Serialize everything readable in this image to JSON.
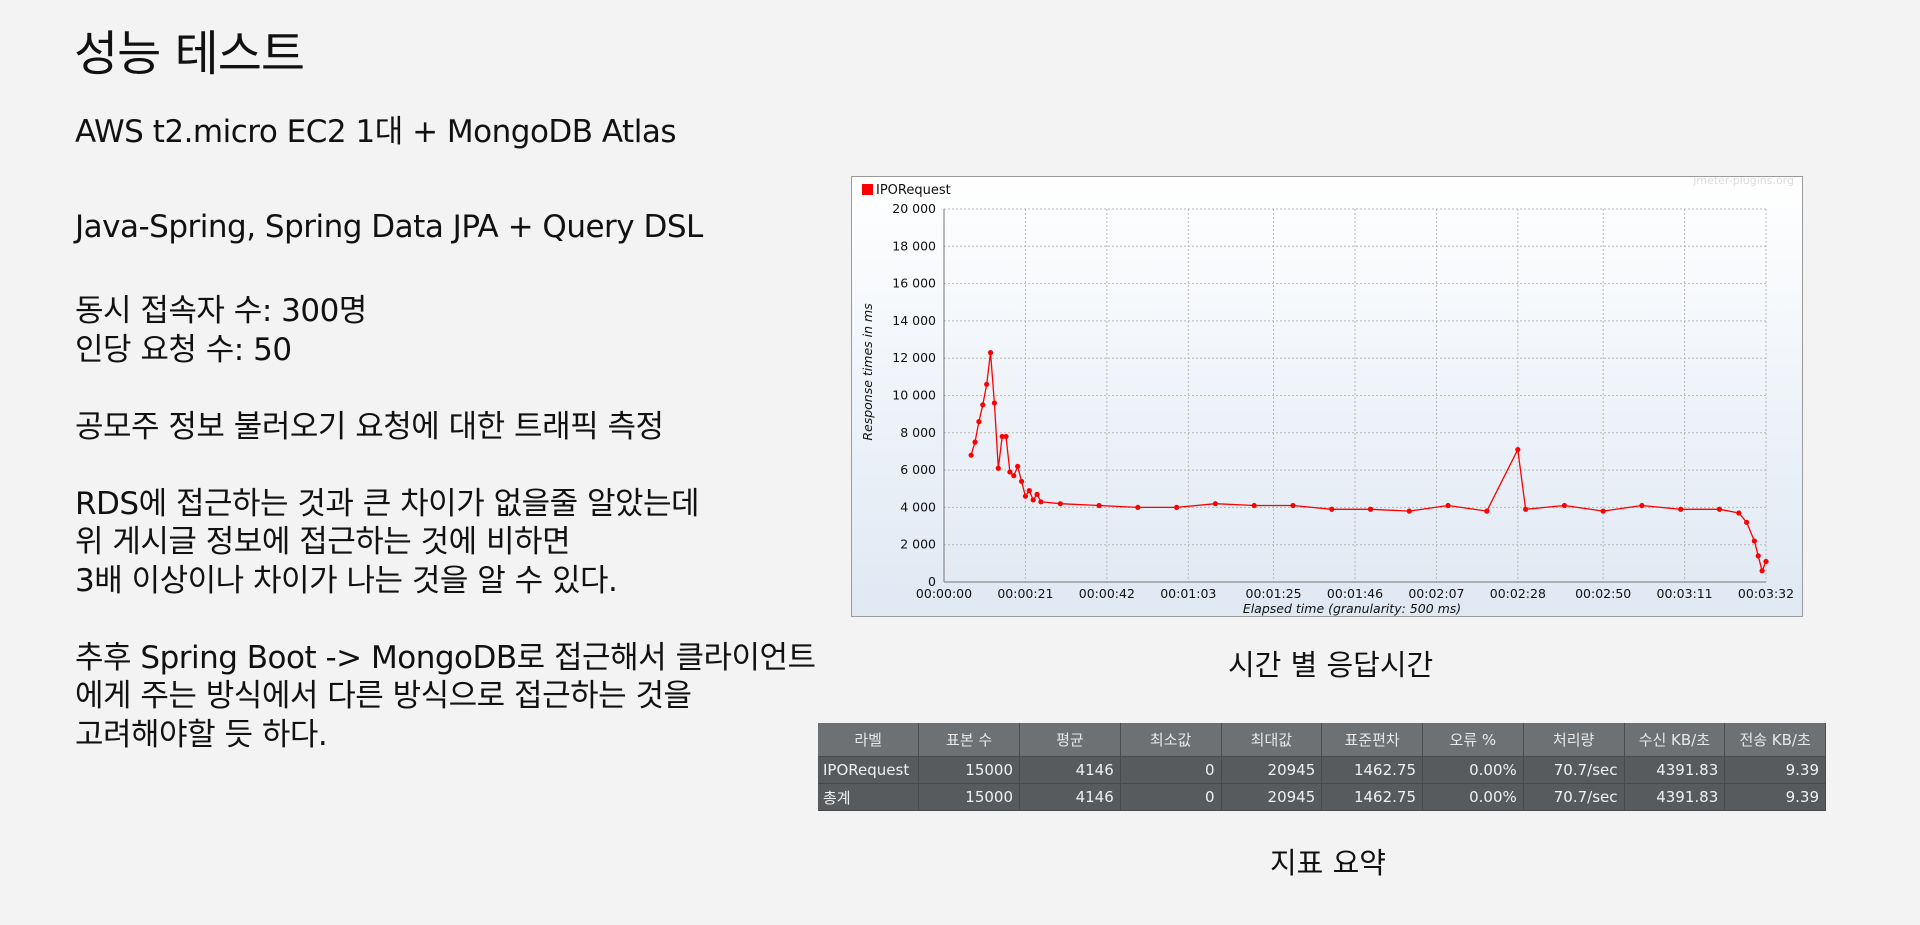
{
  "title": "성능 테스트",
  "text_lines": [
    "AWS t2.micro EC2 1대 + MongoDB Atlas",
    "Java-Spring, Spring Data JPA + Query DSL",
    "동시 접속자 수: 300명",
    "인당 요청 수: 50",
    "공모주 정보 불러오기 요청에 대한 트래픽 측정",
    "RDS에 접근하는 것과 큰 차이가 없을줄 알았는데",
    "위 게시글 정보에 접근하는 것에 비하면",
    "3배 이상이나 차이가 나는 것을 알 수 있다.",
    "추후 Spring Boot -> MongoDB로 접근해서 클라이언트",
    "에게 주는 방식에서 다른 방식으로 접근하는 것을",
    "고려해야할 듯 하다."
  ],
  "chart_caption": "시간 별 응답시간",
  "table_caption": "지표 요약",
  "chart_data": {
    "type": "line",
    "watermark": "jmeter-plugins.org",
    "legend_position": "top-left",
    "grid": true,
    "xlabel": "Elapsed time (granularity: 500 ms)",
    "ylabel": "Response times in ms",
    "xlim": [
      0,
      212
    ],
    "ylim": [
      0,
      20000
    ],
    "x_tick_values": [
      0,
      21,
      42,
      63,
      85,
      106,
      127,
      148,
      170,
      191,
      212
    ],
    "x_tick_labels": [
      "00:00:00",
      "00:00:21",
      "00:00:42",
      "00:01:03",
      "00:01:25",
      "00:01:46",
      "00:02:07",
      "00:02:28",
      "00:02:50",
      "00:03:11",
      "00:03:32"
    ],
    "y_tick_values": [
      0,
      2000,
      4000,
      6000,
      8000,
      10000,
      12000,
      14000,
      16000,
      18000,
      20000
    ],
    "y_tick_labels": [
      "0",
      "2 000",
      "4 000",
      "6 000",
      "8 000",
      "10 000",
      "12 000",
      "14 000",
      "16 000",
      "18 000",
      "20 000"
    ],
    "series": [
      {
        "name": "IPORequest",
        "color": "#ff0000",
        "x": [
          7,
          8,
          9,
          10,
          11,
          12,
          13,
          14,
          15,
          16,
          17,
          18,
          19,
          20,
          21,
          22,
          23,
          24,
          25,
          30,
          40,
          50,
          60,
          70,
          80,
          90,
          100,
          110,
          120,
          130,
          140,
          148,
          150,
          160,
          170,
          180,
          190,
          200,
          205,
          207,
          209,
          210,
          211,
          212
        ],
        "y": [
          6800,
          7500,
          8600,
          9500,
          10600,
          12300,
          9600,
          6100,
          7800,
          7800,
          5900,
          5700,
          6200,
          5400,
          4600,
          4900,
          4400,
          4700,
          4300,
          4200,
          4100,
          4000,
          4000,
          4200,
          4100,
          4100,
          3900,
          3900,
          3800,
          4100,
          3800,
          7100,
          3900,
          4100,
          3800,
          4100,
          3900,
          3900,
          3700,
          3200,
          2200,
          1400,
          600,
          1100
        ]
      }
    ]
  },
  "table": {
    "headers": [
      "라벨",
      "표본 수",
      "평균",
      "최소값",
      "최대값",
      "표준편차",
      "오류 %",
      "처리량",
      "수신 KB/초",
      "전송 KB/초"
    ],
    "rows": [
      [
        "IPORequest",
        "15000",
        "4146",
        "0",
        "20945",
        "1462.75",
        "0.00%",
        "70.7/sec",
        "4391.83",
        "9.39"
      ],
      [
        "총계",
        "15000",
        "4146",
        "0",
        "20945",
        "1462.75",
        "0.00%",
        "70.7/sec",
        "4391.83",
        "9.39"
      ]
    ]
  }
}
